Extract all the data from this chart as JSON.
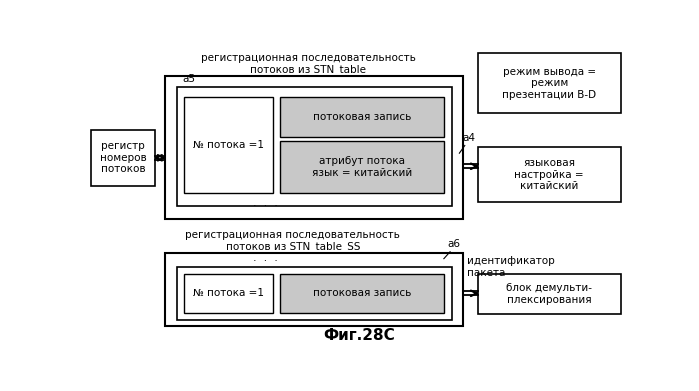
{
  "title": "Фиг.28С",
  "bg_color": "#ffffff",
  "text_color": "#000000",
  "gray_fill": "#c8c8c8",
  "labels": {
    "top_label": "регистрационная последовательность\nпотоков из STN_table",
    "bottom_label": "регистрационная последовательность\nпотоков из STN_table_SS",
    "reg_box": "регистр\nномеров\nпотоков",
    "lang_box": "языковая\nнастройка =\nкитайский",
    "mode_box": "режим вывода =\nрежим\nпрезентации B-D",
    "demux_box": "блок демульти-\nплексирования",
    "ident_box": "идентификатор\nпакета",
    "stream_num_top": "№ потока =1",
    "stream_record_top": "потоковая запись",
    "attr_top": "атрибут потока\nязык = китайский",
    "stream_num_bot": "№ потока =1",
    "stream_record_bot": "потоковая запись",
    "a5": "a5",
    "a4": "a4",
    "a6": "a6",
    "dots": "·  ·  ·"
  }
}
